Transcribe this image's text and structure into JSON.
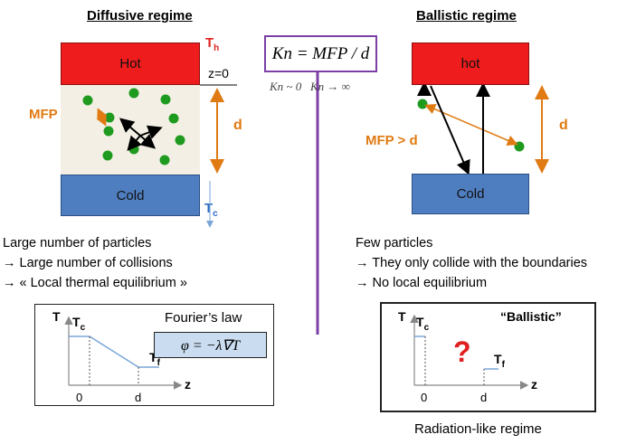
{
  "left": {
    "heading": "Diffusive regime",
    "hot_label": "Hot",
    "cold_label": "Cold",
    "th_label": "T",
    "th_sub": "h",
    "z0_label": "z=0",
    "mfp_label": "MFP",
    "d_label": "d",
    "tc_label": "T",
    "tc_sub": "c",
    "desc_line1": "Large number of particles",
    "desc_line2": "→ Large number of collisions",
    "desc_line3": "→ « Local thermal equilibrium »",
    "graph": {
      "y_axis": "T",
      "tc": "T",
      "tc_sub": "c",
      "tf": "T",
      "tf_sub": "f",
      "law": "Fourier’s law",
      "formula": "φ = −λ∇T",
      "x_axis": "z",
      "tick0": "0",
      "tickd": "d"
    }
  },
  "center": {
    "formula": "Kn = MFP / d",
    "limits": "Kn ~ 0   Kn → ∞",
    "accent": "#7b3fa6"
  },
  "right": {
    "heading": "Ballistic regime",
    "hot_label": "hot",
    "cold_label": "Cold",
    "mfp_label": "MFP > d",
    "d_label": "d",
    "desc_line1": "Few particles",
    "desc_line2": "→ They only collide with the boundaries",
    "desc_line3": "→ No local equilibrium",
    "graph": {
      "title": "“Ballistic”",
      "y_axis": "T",
      "tc": "T",
      "tc_sub": "c",
      "tf": "T",
      "tf_sub": "f",
      "question": "?",
      "x_axis": "z",
      "tick0": "0",
      "tickd": "d"
    },
    "caption": "Radiation-like regime"
  },
  "colors": {
    "hot": "#ee1c1c",
    "cold": "#4f7ec0",
    "particle": "#1e9a1e",
    "orange": "#e07a12",
    "graph_line": "#7aa6d8"
  }
}
